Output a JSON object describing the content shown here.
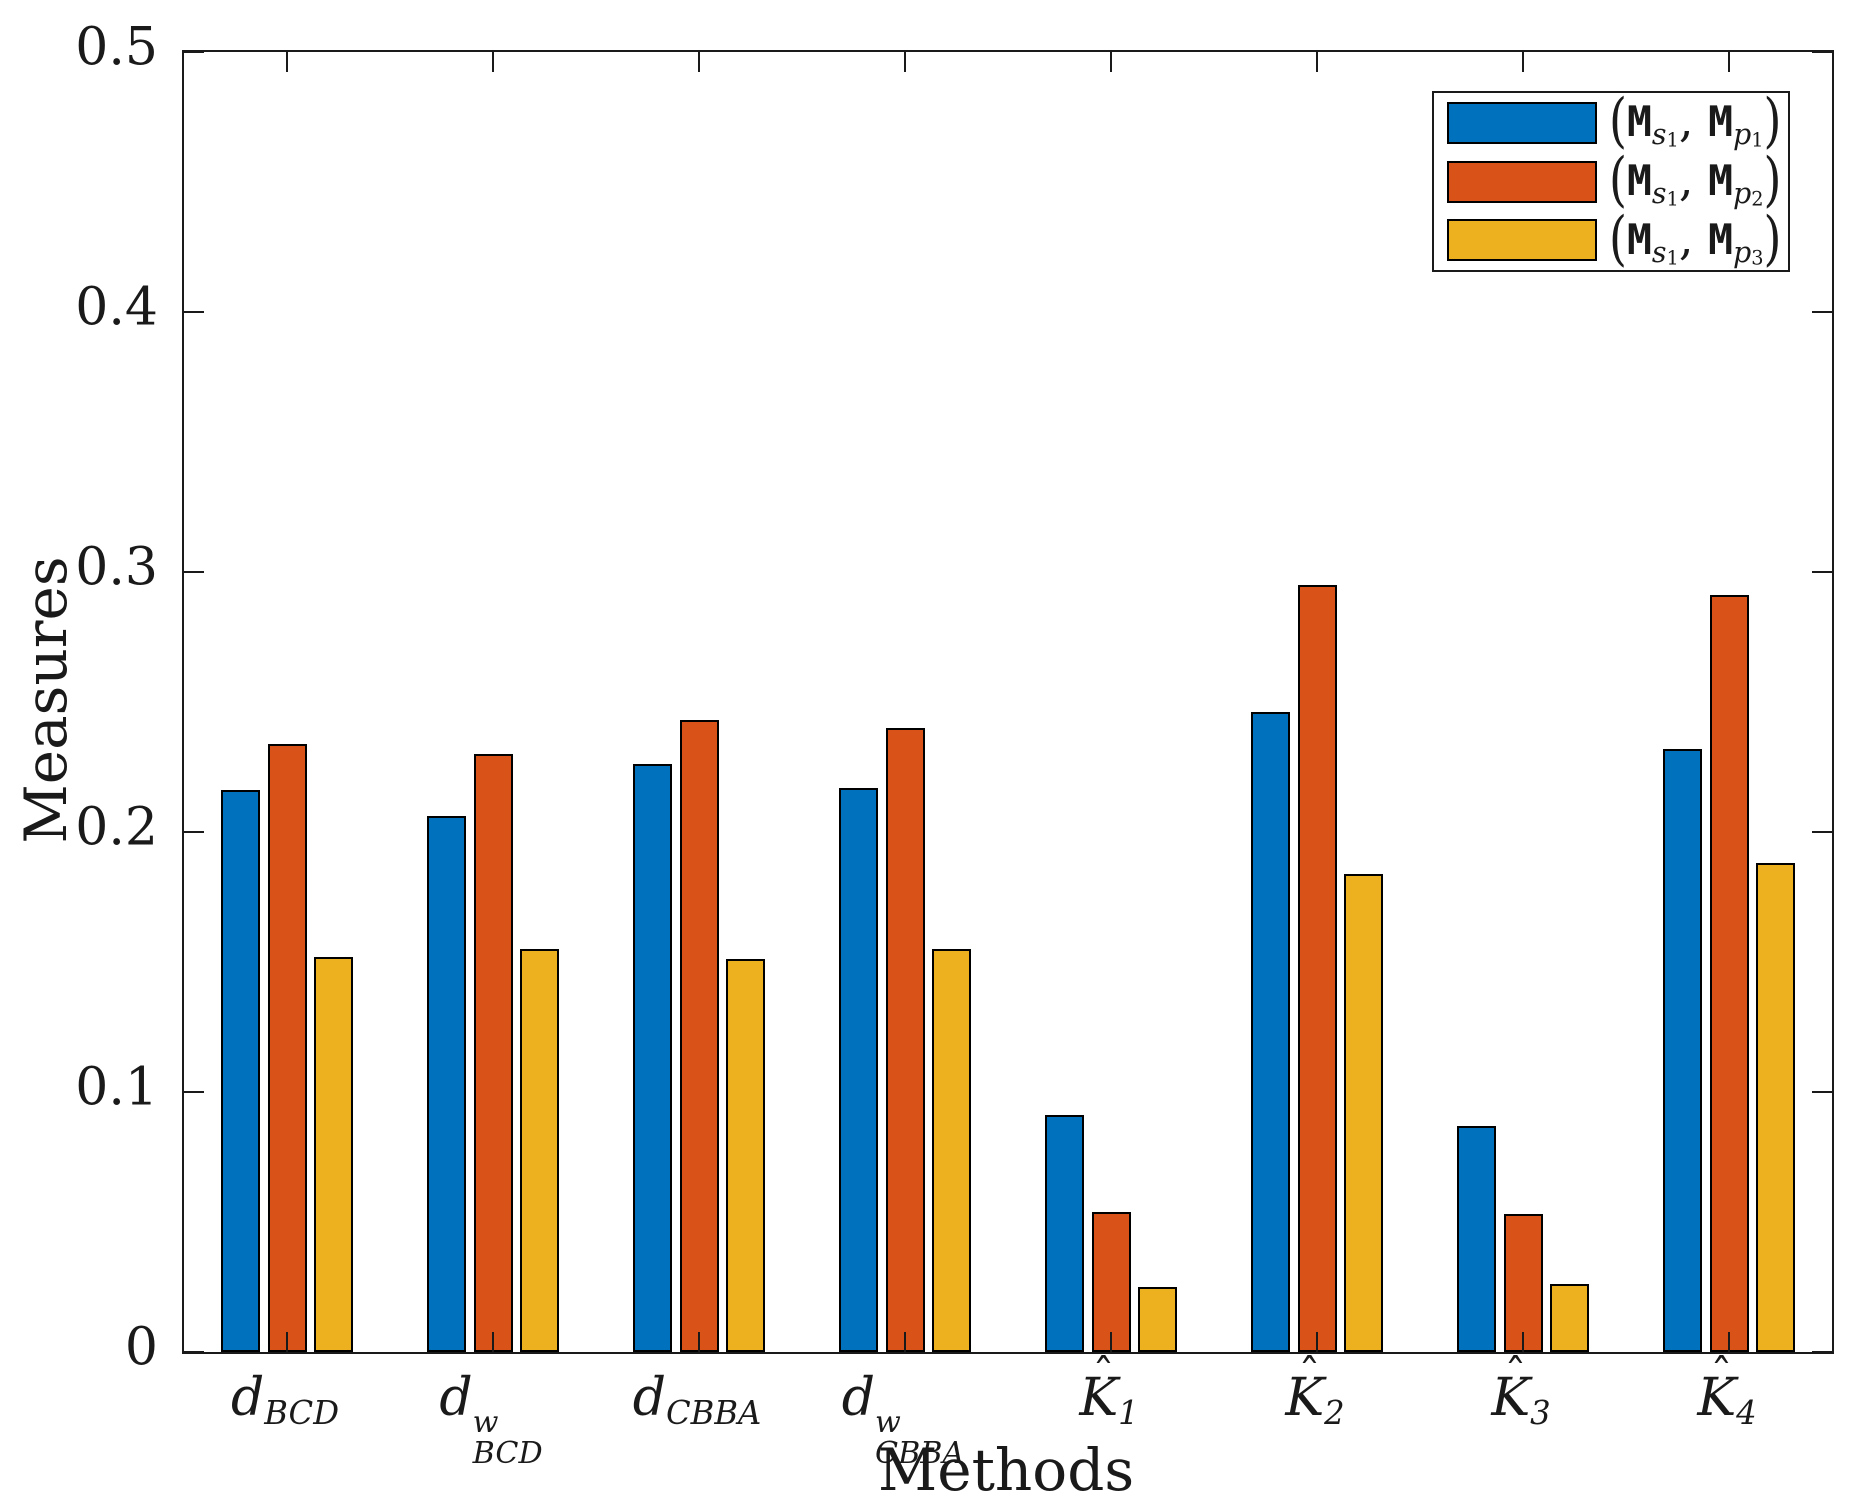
{
  "chart_data": {
    "type": "bar",
    "title": "",
    "xlabel": "Methods",
    "ylabel": "Measures",
    "ylim": [
      0,
      0.5
    ],
    "yticks": [
      0,
      0.1,
      0.2,
      0.3,
      0.4,
      0.5
    ],
    "ytick_labels": [
      "0",
      "0.1",
      "0.2",
      "0.3",
      "0.4",
      "0.5"
    ],
    "grid": false,
    "legend_position": "top-right",
    "bar_edge_color": "#000000",
    "axis_color": "#1a1a1a",
    "categories_plain": [
      "d_BCD",
      "d^w_BCD",
      "d_CBBA",
      "d^w_CBBA",
      "K^_1",
      "K^_2",
      "K^_3",
      "K^_4"
    ],
    "categories_rich": [
      [
        {
          "t": "d",
          "s": "it"
        },
        {
          "t": "BCD",
          "s": "sub"
        }
      ],
      [
        {
          "t": "d",
          "s": "it"
        },
        {
          "stack": {
            "sup": "w",
            "sub": "BCD"
          }
        }
      ],
      [
        {
          "t": "d",
          "s": "it"
        },
        {
          "t": "CBBA",
          "s": "sub"
        }
      ],
      [
        {
          "t": "d",
          "s": "it"
        },
        {
          "stack": {
            "sup": "w",
            "sub": "CBBA"
          }
        }
      ],
      [
        {
          "t": "K",
          "s": "it",
          "hat": true
        },
        {
          "t": "1",
          "s": "sub"
        }
      ],
      [
        {
          "t": "K",
          "s": "it",
          "hat": true
        },
        {
          "t": "2",
          "s": "sub"
        }
      ],
      [
        {
          "t": "K",
          "s": "it",
          "hat": true
        },
        {
          "t": "3",
          "s": "sub"
        }
      ],
      [
        {
          "t": "K",
          "s": "it",
          "hat": true
        },
        {
          "t": "4",
          "s": "sub"
        }
      ]
    ],
    "series": [
      {
        "name_plain": "(M_s1, M_p1)",
        "color": "#0072BD",
        "values": [
          0.216,
          0.206,
          0.226,
          0.217,
          0.091,
          0.246,
          0.087,
          0.232
        ]
      },
      {
        "name_plain": "(M_s1, M_p2)",
        "color": "#D95319",
        "values": [
          0.234,
          0.23,
          0.243,
          0.24,
          0.054,
          0.295,
          0.053,
          0.291
        ]
      },
      {
        "name_plain": "(M_s1, M_p3)",
        "color": "#EDB120",
        "values": [
          0.152,
          0.155,
          0.151,
          0.155,
          0.025,
          0.184,
          0.026,
          0.188
        ]
      }
    ],
    "legend_rich": [
      [
        {
          "t": "(",
          "s": "paren"
        },
        {
          "t": "M",
          "s": "tt"
        },
        {
          "t": "s",
          "s": "sub"
        },
        {
          "t": "1",
          "s": "ss"
        },
        {
          "t": ",",
          "s": "base"
        },
        {
          "t": " ",
          "s": "base"
        },
        {
          "t": "M",
          "s": "tt"
        },
        {
          "t": "p",
          "s": "sub"
        },
        {
          "t": "1",
          "s": "ss"
        },
        {
          "t": ")",
          "s": "paren"
        }
      ],
      [
        {
          "t": "(",
          "s": "paren"
        },
        {
          "t": "M",
          "s": "tt"
        },
        {
          "t": "s",
          "s": "sub"
        },
        {
          "t": "1",
          "s": "ss"
        },
        {
          "t": ",",
          "s": "base"
        },
        {
          "t": " ",
          "s": "base"
        },
        {
          "t": "M",
          "s": "tt"
        },
        {
          "t": "p",
          "s": "sub"
        },
        {
          "t": "2",
          "s": "ss"
        },
        {
          "t": ")",
          "s": "paren"
        }
      ],
      [
        {
          "t": "(",
          "s": "paren"
        },
        {
          "t": "M",
          "s": "tt"
        },
        {
          "t": "s",
          "s": "sub"
        },
        {
          "t": "1",
          "s": "ss"
        },
        {
          "t": ",",
          "s": "base"
        },
        {
          "t": " ",
          "s": "base"
        },
        {
          "t": "M",
          "s": "tt"
        },
        {
          "t": "p",
          "s": "sub"
        },
        {
          "t": "3",
          "s": "ss"
        },
        {
          "t": ")",
          "s": "paren"
        }
      ]
    ]
  }
}
